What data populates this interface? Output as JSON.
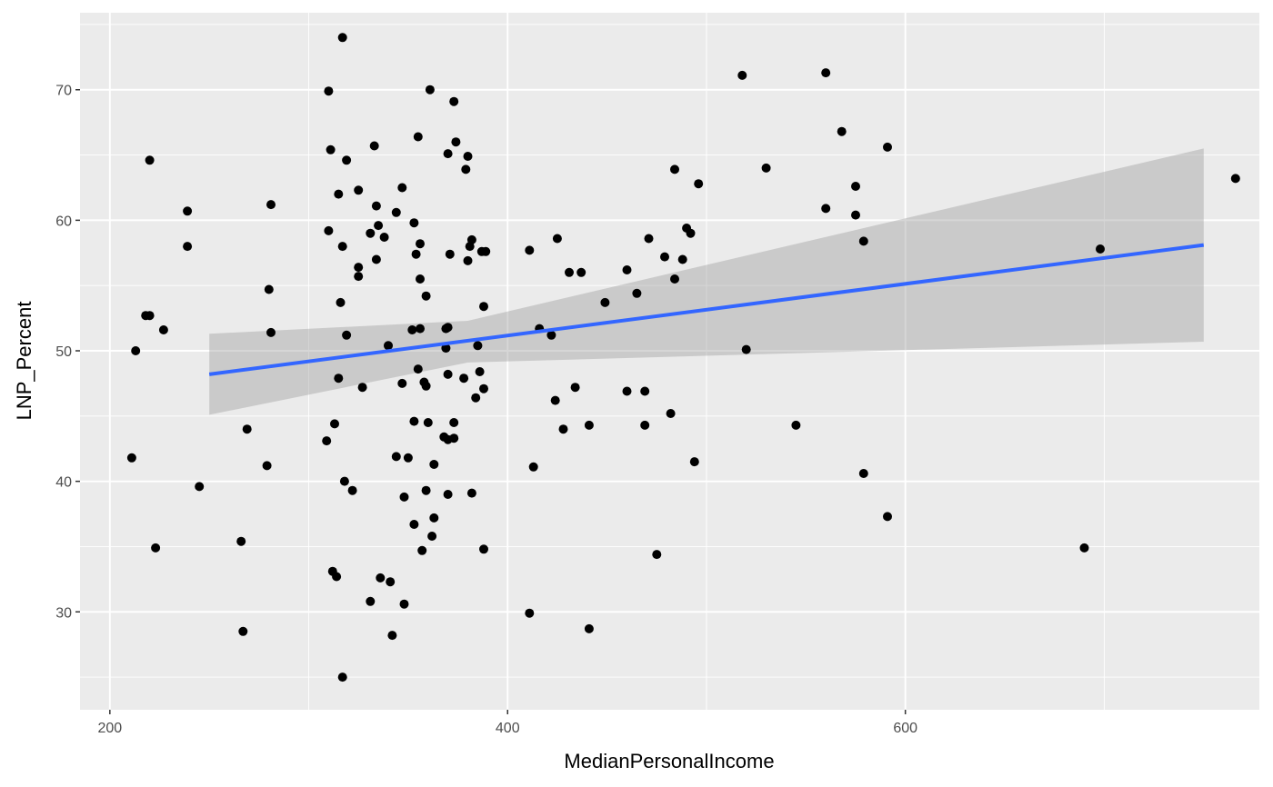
{
  "chart_data": {
    "type": "scatter",
    "title": "",
    "xlabel": "MedianPersonalIncome",
    "ylabel": "LNP_Percent",
    "xlim": [
      185,
      778
    ],
    "ylim": [
      22.5,
      75.9
    ],
    "x_ticks": [
      200,
      400,
      600
    ],
    "x_tick_labels": [
      "200",
      "400",
      "600"
    ],
    "y_ticks": [
      30,
      40,
      50,
      60,
      70
    ],
    "y_tick_labels": [
      "30",
      "40",
      "50",
      "60",
      "70"
    ],
    "grid": true,
    "legend": "none",
    "series": [
      {
        "values": [
          [
            211,
            41.8
          ],
          [
            213,
            50.0
          ],
          [
            218,
            52.7
          ],
          [
            220,
            64.6
          ],
          [
            220,
            52.7
          ],
          [
            223,
            34.9
          ],
          [
            227,
            51.6
          ],
          [
            239,
            60.7
          ],
          [
            239,
            58.0
          ],
          [
            245,
            39.6
          ],
          [
            266,
            35.4
          ],
          [
            267,
            28.5
          ],
          [
            269,
            44.0
          ],
          [
            279,
            41.2
          ],
          [
            280,
            54.7
          ],
          [
            281,
            61.2
          ],
          [
            281,
            51.4
          ],
          [
            310,
            69.9
          ],
          [
            310,
            59.2
          ],
          [
            309,
            43.1
          ],
          [
            311,
            65.4
          ],
          [
            312,
            33.1
          ],
          [
            313,
            44.4
          ],
          [
            314,
            32.7
          ],
          [
            315,
            62.0
          ],
          [
            315,
            47.9
          ],
          [
            316,
            53.7
          ],
          [
            317,
            74.0
          ],
          [
            317,
            58.0
          ],
          [
            317,
            25.0
          ],
          [
            318,
            40.0
          ],
          [
            319,
            64.6
          ],
          [
            319,
            51.2
          ],
          [
            322,
            39.3
          ],
          [
            325,
            62.3
          ],
          [
            325,
            56.4
          ],
          [
            325,
            55.7
          ],
          [
            327,
            47.2
          ],
          [
            331,
            59.0
          ],
          [
            331,
            30.8
          ],
          [
            333,
            65.7
          ],
          [
            334,
            61.1
          ],
          [
            334,
            57.0
          ],
          [
            335,
            59.6
          ],
          [
            336,
            32.6
          ],
          [
            338,
            58.7
          ],
          [
            340,
            50.4
          ],
          [
            341,
            32.3
          ],
          [
            342,
            28.2
          ],
          [
            344,
            60.6
          ],
          [
            344,
            41.9
          ],
          [
            347,
            62.5
          ],
          [
            347,
            47.5
          ],
          [
            348,
            38.8
          ],
          [
            348,
            30.6
          ],
          [
            350,
            41.8
          ],
          [
            352,
            51.6
          ],
          [
            353,
            59.8
          ],
          [
            353,
            44.6
          ],
          [
            353,
            36.7
          ],
          [
            354,
            57.4
          ],
          [
            355,
            48.6
          ],
          [
            355,
            66.4
          ],
          [
            356,
            55.5
          ],
          [
            356,
            58.2
          ],
          [
            356,
            51.7
          ],
          [
            357,
            34.7
          ],
          [
            358,
            47.6
          ],
          [
            359,
            47.3
          ],
          [
            359,
            54.2
          ],
          [
            359,
            39.3
          ],
          [
            360,
            44.5
          ],
          [
            361,
            70.0
          ],
          [
            362,
            35.8
          ],
          [
            363,
            37.2
          ],
          [
            363,
            41.3
          ],
          [
            368,
            43.4
          ],
          [
            369,
            51.7
          ],
          [
            369,
            50.2
          ],
          [
            370,
            65.1
          ],
          [
            370,
            51.8
          ],
          [
            370,
            48.2
          ],
          [
            370,
            43.2
          ],
          [
            370,
            39.0
          ],
          [
            371,
            57.4
          ],
          [
            373,
            69.1
          ],
          [
            373,
            44.5
          ],
          [
            373,
            43.3
          ],
          [
            374,
            66.0
          ],
          [
            378,
            47.9
          ],
          [
            379,
            63.9
          ],
          [
            380,
            64.9
          ],
          [
            380,
            56.9
          ],
          [
            381,
            58.0
          ],
          [
            382,
            58.5
          ],
          [
            382,
            39.1
          ],
          [
            384,
            46.4
          ],
          [
            385,
            50.4
          ],
          [
            386,
            48.4
          ],
          [
            387,
            57.6
          ],
          [
            388,
            47.1
          ],
          [
            388,
            34.8
          ],
          [
            388,
            53.4
          ],
          [
            389,
            57.6
          ],
          [
            411,
            57.7
          ],
          [
            411,
            29.9
          ],
          [
            413,
            41.1
          ],
          [
            416,
            51.7
          ],
          [
            422,
            51.2
          ],
          [
            424,
            46.2
          ],
          [
            425,
            58.6
          ],
          [
            428,
            44.0
          ],
          [
            431,
            56.0
          ],
          [
            434,
            47.2
          ],
          [
            437,
            56.0
          ],
          [
            441,
            44.3
          ],
          [
            441,
            28.7
          ],
          [
            449,
            53.7
          ],
          [
            460,
            56.2
          ],
          [
            460,
            46.9
          ],
          [
            465,
            54.4
          ],
          [
            469,
            44.3
          ],
          [
            469,
            46.9
          ],
          [
            471,
            58.6
          ],
          [
            475,
            34.4
          ],
          [
            479,
            57.2
          ],
          [
            482,
            45.2
          ],
          [
            484,
            55.5
          ],
          [
            484,
            63.9
          ],
          [
            488,
            57.0
          ],
          [
            490,
            59.4
          ],
          [
            492,
            59.0
          ],
          [
            494,
            41.5
          ],
          [
            496,
            62.8
          ],
          [
            518,
            71.1
          ],
          [
            520,
            50.1
          ],
          [
            530,
            64.0
          ],
          [
            545,
            44.3
          ],
          [
            560,
            71.3
          ],
          [
            560,
            60.9
          ],
          [
            568,
            66.8
          ],
          [
            575,
            62.6
          ],
          [
            575,
            60.4
          ],
          [
            579,
            58.4
          ],
          [
            579,
            40.6
          ],
          [
            591,
            65.6
          ],
          [
            591,
            37.3
          ],
          [
            690,
            34.9
          ],
          [
            698,
            57.8
          ],
          [
            766,
            63.2
          ]
        ]
      }
    ],
    "trend_line": {
      "method": "linear regression",
      "x_range": [
        250,
        750
      ],
      "y_range": [
        48.2,
        58.1
      ],
      "band_lower": [
        45.1,
        50.7
      ],
      "band_upper": [
        51.3,
        65.5
      ],
      "band_center_x": 380,
      "band_center_lower": 49.1,
      "band_center_upper": 52.3
    },
    "colors": {
      "panel_background": "#EBEBEB",
      "grid_major": "#FFFFFF",
      "points": "#000000",
      "trend_line": "#3366FF",
      "confidence_band": "#999999",
      "tick_label": "#4D4D4D",
      "axis_title": "#000000"
    }
  }
}
